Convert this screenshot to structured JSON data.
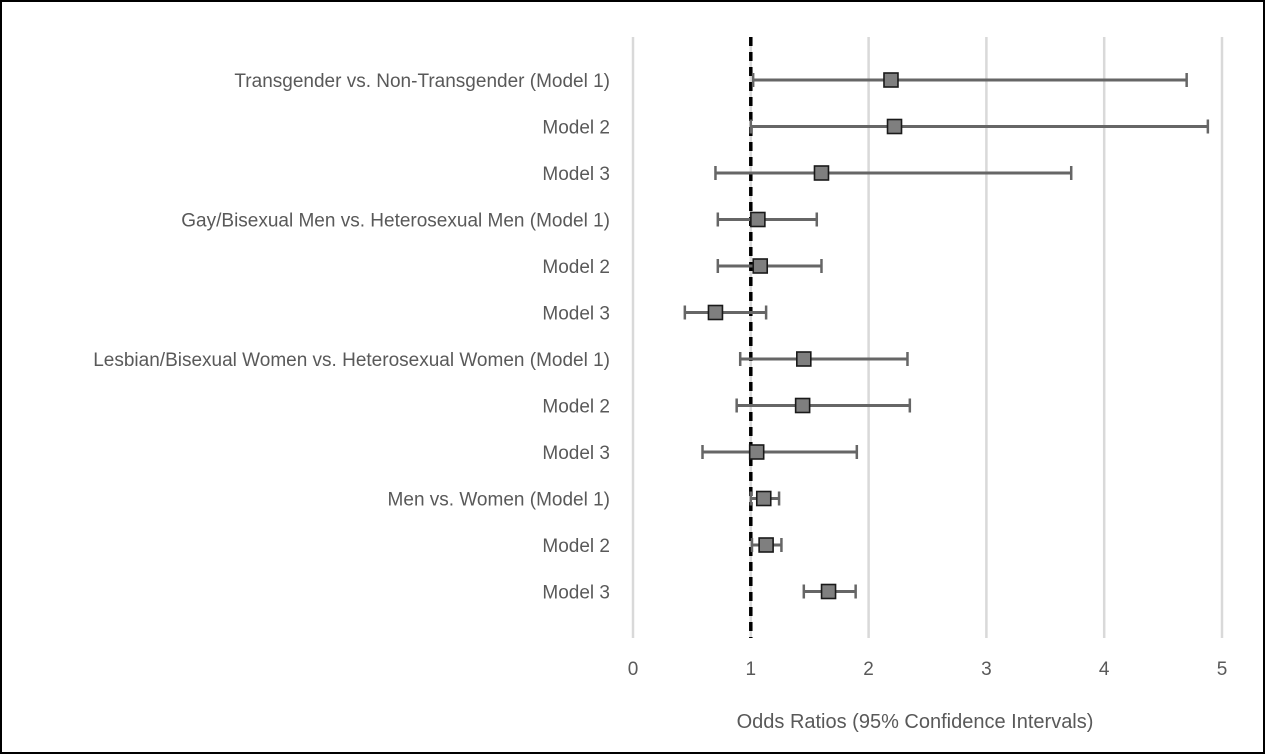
{
  "chart_data": {
    "type": "scatter",
    "subtype": "forest-plot",
    "title": "",
    "xlabel": "Odds Ratios (95% Confidence Intervals)",
    "ylabel": "",
    "xlim": [
      0,
      5
    ],
    "xticks": [
      "0",
      "1",
      "2",
      "3",
      "4",
      "5"
    ],
    "xtick_values": [
      0,
      1,
      2,
      3,
      4,
      5
    ],
    "reference_line": 1,
    "grid": "vertical",
    "legend": "none",
    "colors": {
      "marker": "#7f7f7f",
      "marker_edge": "#1a1a1a",
      "error_bar": "#666666",
      "grid": "#d9d9d9",
      "reference": "#000000"
    },
    "categories": [
      "Transgender vs. Non-Transgender (Model 1)",
      "Model 2",
      "Model 3",
      "Gay/Bisexual Men vs. Heterosexual Men (Model 1)",
      "Model 2",
      "Model 3",
      "Lesbian/Bisexual Women vs. Heterosexual Women (Model 1)",
      "Model 2",
      "Model 3",
      "Men vs. Women (Model 1)",
      "Model 2",
      "Model 3"
    ],
    "odds_ratio": [
      2.19,
      2.22,
      1.6,
      1.06,
      1.08,
      0.7,
      1.45,
      1.44,
      1.05,
      1.11,
      1.13,
      1.66
    ],
    "ci_lower": [
      1.02,
      1.0,
      0.7,
      0.72,
      0.72,
      0.44,
      0.91,
      0.88,
      0.59,
      1.0,
      1.01,
      1.45
    ],
    "ci_upper": [
      4.7,
      4.88,
      3.72,
      1.56,
      1.6,
      1.13,
      2.33,
      2.35,
      1.9,
      1.24,
      1.26,
      1.89
    ]
  }
}
